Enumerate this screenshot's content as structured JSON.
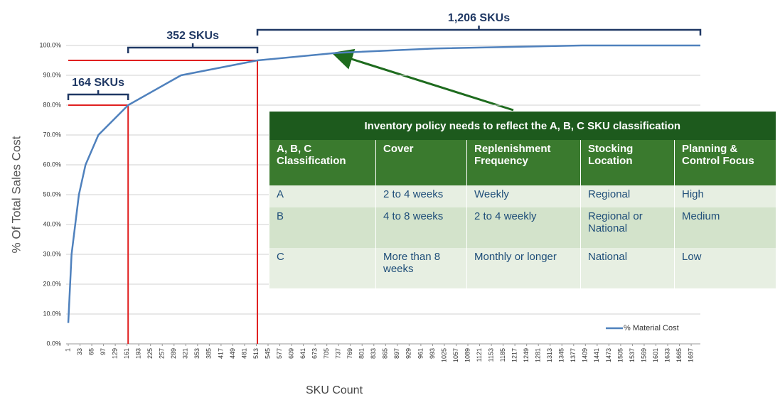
{
  "chart_data": {
    "type": "line",
    "xlabel": "SKU Count",
    "ylabel": "% Of Total Sales Cost",
    "x": [
      1,
      10,
      20,
      30,
      48,
      83,
      164,
      308,
      516,
      730,
      1000,
      1400,
      1722
    ],
    "series": [
      {
        "name": "% Material Cost",
        "color": "#4f81bd",
        "values": [
          7,
          30,
          40,
          50,
          60,
          70,
          80,
          90,
          95,
          97.5,
          99,
          100,
          100
        ]
      }
    ],
    "xlim": [
      1,
      1722
    ],
    "xticks": [
      1,
      33,
      65,
      97,
      129,
      161,
      193,
      225,
      257,
      289,
      321,
      353,
      385,
      417,
      449,
      481,
      513,
      545,
      577,
      609,
      641,
      673,
      705,
      737,
      769,
      801,
      833,
      865,
      897,
      929,
      961,
      993,
      1025,
      1057,
      1089,
      1121,
      1153,
      1185,
      1217,
      1249,
      1281,
      1313,
      1345,
      1377,
      1409,
      1441,
      1473,
      1505,
      1537,
      1569,
      1601,
      1633,
      1665,
      1697
    ],
    "ylim": [
      0,
      100
    ],
    "yticks": [
      {
        "value": 0,
        "label": "0.0%"
      },
      {
        "value": 10,
        "label": "10.0%"
      },
      {
        "value": 20,
        "label": "20.0%"
      },
      {
        "value": 30,
        "label": "30.0%"
      },
      {
        "value": 40,
        "label": "40.0%"
      },
      {
        "value": 50,
        "label": "50.0%"
      },
      {
        "value": 60,
        "label": "60.0%"
      },
      {
        "value": 70,
        "label": "70.0%"
      },
      {
        "value": 80,
        "label": "80.0%"
      },
      {
        "value": 90,
        "label": "90.0%"
      },
      {
        "value": 100,
        "label": "100.0%"
      }
    ],
    "grid": true,
    "legend": "lower right",
    "thresholds": [
      {
        "x": 164,
        "y": 80,
        "color": "#e02020"
      },
      {
        "x": 516,
        "y": 95,
        "color": "#e02020"
      }
    ],
    "braces": [
      {
        "label": "164 SKUs",
        "from": 1,
        "to": 164,
        "level": 133
      },
      {
        "label": "352 SKUs",
        "from": 164,
        "to": 516,
        "level": 67
      },
      {
        "label": "1,206 SKUs",
        "from": 516,
        "to": 1722,
        "level": 42
      }
    ]
  },
  "table": {
    "title": "Inventory policy needs to reflect the A, B, C SKU classification",
    "header": [
      "A, B, C Classification",
      "Cover",
      "Replenishment Frequency",
      "Stocking Location",
      "Planning & Control Focus"
    ],
    "rows": [
      [
        "A",
        "2 to 4 weeks",
        "Weekly",
        "Regional",
        "High"
      ],
      [
        "B",
        "4 to 8 weeks",
        "2 to 4 weekly",
        "Regional or National",
        "Medium"
      ],
      [
        "C",
        "More than 8 weeks",
        "Monthly or longer",
        "National",
        "Low"
      ]
    ]
  }
}
